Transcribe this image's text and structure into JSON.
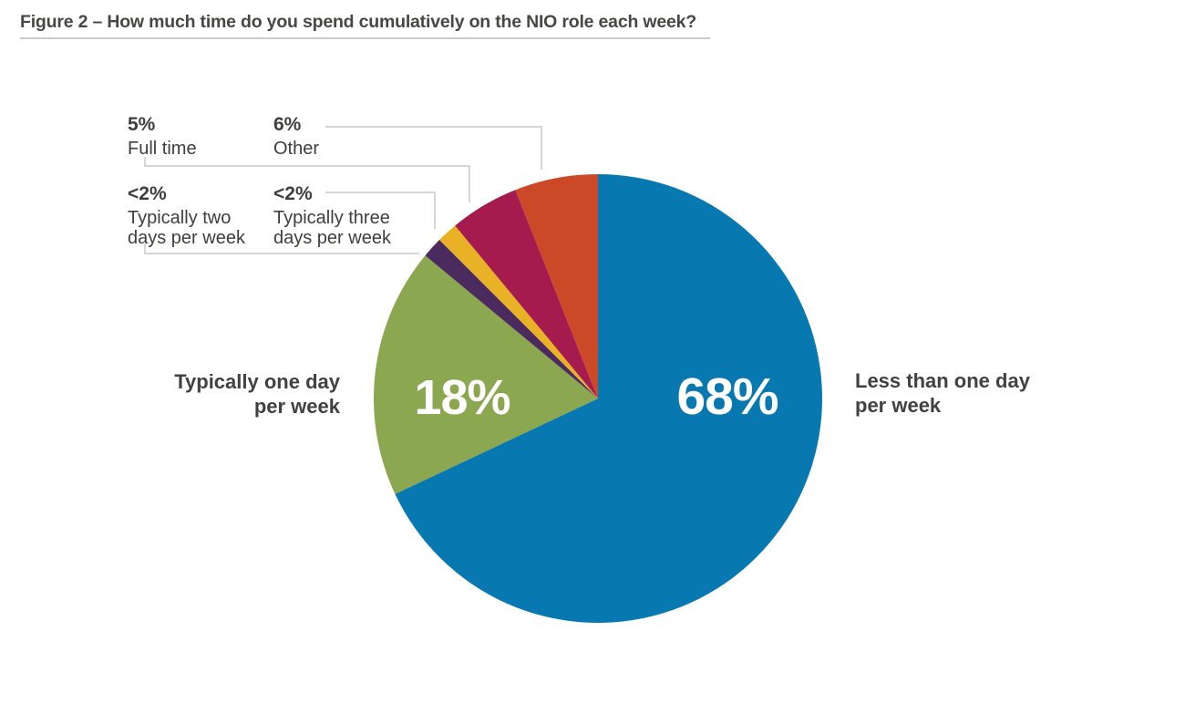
{
  "figure": {
    "title": "Figure 2 – How much time do you spend cumulatively on the NIO role each week?"
  },
  "chart_data": {
    "type": "pie",
    "title": "How much time do you spend cumulatively on the NIO role each week?",
    "start_angle_deg": 0,
    "direction": "clockwise",
    "total": 100,
    "legend": "none",
    "slices": [
      {
        "label": "Less than one day per week",
        "display_value": "68%",
        "value": 68,
        "color": "#0878b0"
      },
      {
        "label": "Typically one day per week",
        "display_value": "18%",
        "value": 18,
        "color": "#8ba750"
      },
      {
        "label": "Typically two days per week",
        "display_value": "<2%",
        "value": 1.5,
        "color": "#4b2a5d"
      },
      {
        "label": "Typically three days per week",
        "display_value": "<2%",
        "value": 1.5,
        "color": "#e9b125"
      },
      {
        "label": "Full time",
        "display_value": "5%",
        "value": 5,
        "color": "#a51b4d"
      },
      {
        "label": "Other",
        "display_value": "6%",
        "value": 6,
        "color": "#cc4928"
      }
    ],
    "inner_labels": {
      "blue": "68%",
      "green": "18%"
    },
    "side_labels": {
      "right": "Less than one day\nper week",
      "left": "Typically one day\nper week"
    },
    "leader_line_color": "#c9c9c9"
  }
}
